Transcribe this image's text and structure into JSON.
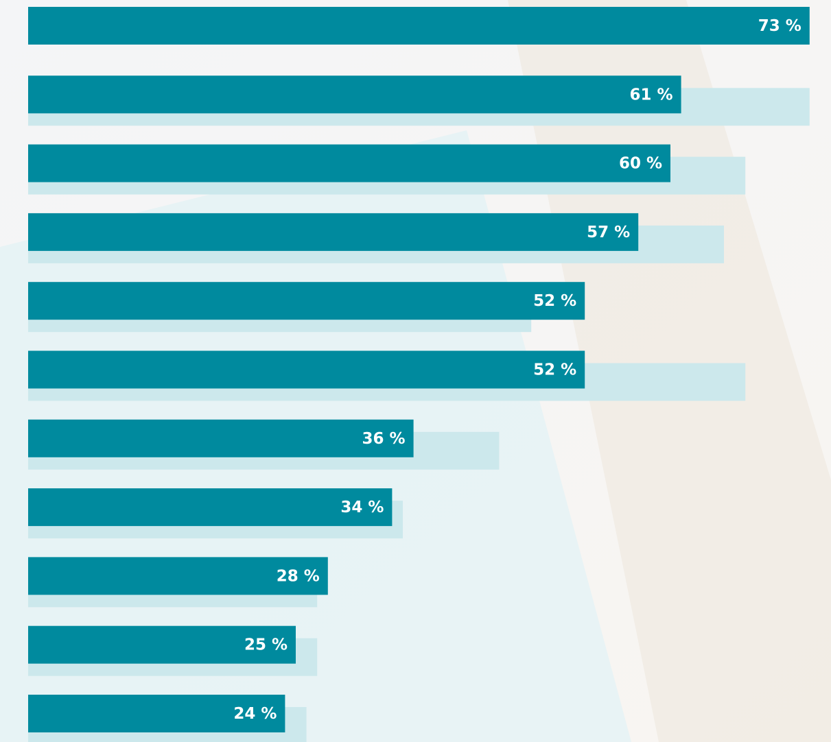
{
  "chart_data": {
    "type": "bar",
    "orientation": "horizontal",
    "categories": [
      null,
      null,
      null,
      null,
      null,
      null,
      null,
      null,
      null,
      null,
      null
    ],
    "xlim": [
      0,
      75
    ],
    "series": [
      {
        "color": "#cce8ec",
        "values": [
          null,
          73,
          67,
          65,
          47,
          67,
          44,
          35,
          27,
          27,
          26
        ]
      },
      {
        "color": "#008a9e",
        "values": [
          73,
          61,
          60,
          57,
          52,
          52,
          36,
          34,
          28,
          25,
          24
        ],
        "value_labels": [
          "73 %",
          "61 %",
          "60 %",
          "57 %",
          "52 %",
          "52 %",
          "36 %",
          "34 %",
          "28 %",
          "25 %",
          "24 %"
        ]
      }
    ]
  }
}
